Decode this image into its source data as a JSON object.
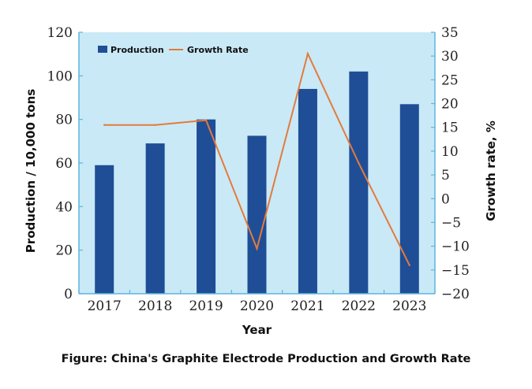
{
  "caption": "Figure: China's Graphite Electrode Production and Growth Rate",
  "colors": {
    "plot_bg": "#c9e9f7",
    "bar": "#1f4e96",
    "line": "#e57a3a",
    "axis": "#5db6df"
  },
  "chart_data": {
    "type": "bar",
    "categories": [
      "2017",
      "2018",
      "2019",
      "2020",
      "2021",
      "2022",
      "2023"
    ],
    "series": [
      {
        "name": "Production",
        "type": "bar",
        "axis": "left",
        "values": [
          59,
          69,
          80,
          72.5,
          94,
          102,
          87
        ]
      },
      {
        "name": "Growth Rate",
        "type": "line",
        "axis": "right",
        "values": [
          15.5,
          15.5,
          16.5,
          -10.5,
          30.5,
          7.5,
          -14
        ]
      }
    ],
    "xlabel": "Year",
    "ylabel": "Production / 10,000 tons",
    "y2label": "Growth rate, %",
    "ylim": [
      0,
      120
    ],
    "y2lim": [
      -20,
      35
    ],
    "yticks": [
      "0",
      "20",
      "40",
      "60",
      "80",
      "100",
      "120"
    ],
    "y2ticks": [
      "−20",
      "−15",
      "−10",
      "−5",
      "0",
      "5",
      "10",
      "15",
      "20",
      "25",
      "30",
      "35"
    ],
    "legend": "top-left",
    "grid": false
  }
}
